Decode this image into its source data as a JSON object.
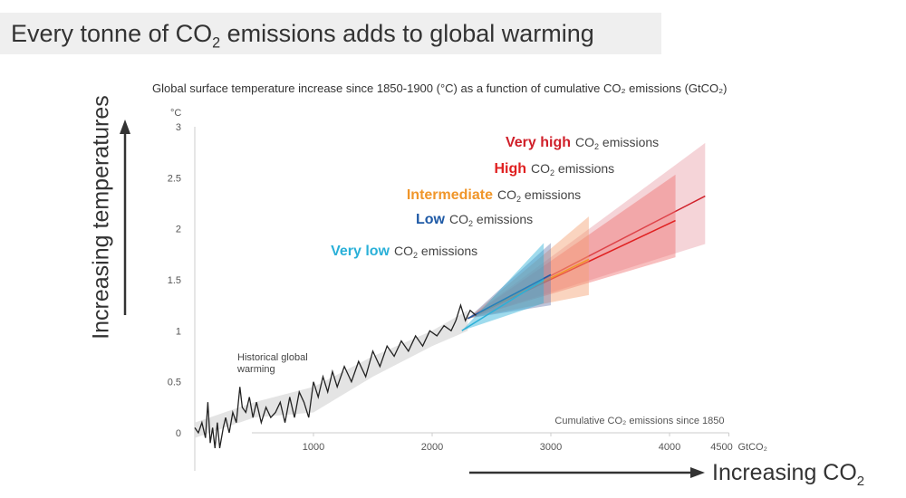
{
  "banner": {
    "title_pre": "Every tonne of CO",
    "title_sub": "2",
    "title_post": " emissions adds to global warming"
  },
  "side_labels": {
    "y": "Increasing temperatures",
    "x_pre": "Increasing CO",
    "x_sub": "2"
  },
  "chart_data": {
    "type": "line",
    "title": "Global surface temperature increase since 1850-1900 (°C) as a function of cumulative CO₂ emissions (GtCO₂)",
    "ylabel": "°C",
    "xlabel": "Cumulative CO₂ emissions since 1850",
    "x_unit": "GtCO₂",
    "xlim": [
      0,
      4500
    ],
    "ylim": [
      0,
      3
    ],
    "xticks": [
      {
        "v": 1000,
        "l": "1000"
      },
      {
        "v": 2000,
        "l": "2000"
      },
      {
        "v": 3000,
        "l": "3000"
      },
      {
        "v": 4000,
        "l": "4000"
      },
      {
        "v": 4500,
        "l": "4500"
      }
    ],
    "yticks": [
      {
        "v": 0,
        "l": "0"
      },
      {
        "v": 0.5,
        "l": "0.5"
      },
      {
        "v": 1,
        "l": "1"
      },
      {
        "v": 1.5,
        "l": "1.5"
      },
      {
        "v": 2,
        "l": "2"
      },
      {
        "v": 2.5,
        "l": "2.5"
      },
      {
        "v": 3,
        "l": "3"
      }
    ],
    "annotation": "Historical global warming",
    "historical": {
      "x": [
        0,
        30,
        60,
        90,
        110,
        130,
        150,
        170,
        190,
        210,
        240,
        260,
        290,
        320,
        350,
        380,
        400,
        430,
        460,
        490,
        520,
        560,
        600,
        640,
        680,
        720,
        760,
        800,
        840,
        880,
        920,
        960,
        1000,
        1040,
        1080,
        1120,
        1160,
        1200,
        1260,
        1320,
        1380,
        1440,
        1500,
        1560,
        1620,
        1680,
        1740,
        1800,
        1860,
        1920,
        1980,
        2040,
        2100,
        2160,
        2200,
        2240,
        2280,
        2320,
        2370
      ],
      "y": [
        0.05,
        0.0,
        0.1,
        -0.05,
        0.3,
        -0.1,
        0.05,
        -0.15,
        0.1,
        -0.15,
        0.05,
        0.15,
        0.0,
        0.2,
        0.1,
        0.45,
        0.25,
        0.2,
        0.35,
        0.15,
        0.3,
        0.1,
        0.25,
        0.15,
        0.2,
        0.3,
        0.1,
        0.35,
        0.15,
        0.4,
        0.3,
        0.15,
        0.5,
        0.35,
        0.55,
        0.4,
        0.6,
        0.45,
        0.65,
        0.5,
        0.7,
        0.55,
        0.8,
        0.65,
        0.85,
        0.75,
        0.9,
        0.8,
        0.95,
        0.85,
        1.0,
        0.95,
        1.05,
        1.0,
        1.1,
        1.25,
        1.1,
        1.2,
        1.15
      ]
    },
    "historical_range": {
      "x": [
        0,
        500,
        1000,
        1500,
        2000,
        2300
      ],
      "lower": [
        -0.05,
        0.15,
        0.2,
        0.55,
        0.85,
        1.0
      ],
      "upper": [
        0.1,
        0.3,
        0.45,
        0.75,
        1.0,
        1.2
      ]
    },
    "series": [
      {
        "name": "Very high",
        "suffix": "emissions",
        "color": "#d0202a",
        "fill": "#e8a0a8",
        "start": [
          2300,
          1.12
        ],
        "end": 4300,
        "central": 2.32,
        "lower": 1.85,
        "upper": 2.84
      },
      {
        "name": "High",
        "suffix": "emissions",
        "color": "#e02020",
        "fill": "#f07070",
        "start": [
          2300,
          1.12
        ],
        "end": 4050,
        "central": 2.08,
        "lower": 1.72,
        "upper": 2.53
      },
      {
        "name": "Intermediate",
        "suffix": "emissions",
        "color": "#f0962a",
        "fill": "#f5a070",
        "start": [
          2300,
          1.12
        ],
        "end": 3320,
        "central": 1.7,
        "lower": 1.35,
        "upper": 2.12
      },
      {
        "name": "Low",
        "suffix": "emissions",
        "color": "#1f5aa6",
        "fill": "#6f7fb0",
        "start": [
          2300,
          1.12
        ],
        "end": 3000,
        "central": 1.55,
        "lower": 1.25,
        "upper": 1.86
      },
      {
        "name": "Very low",
        "suffix": "emissions",
        "color": "#2ab0d8",
        "fill": "#2ab0d8",
        "start": [
          2250,
          1.0
        ],
        "end": 2940,
        "central": 1.5,
        "lower": 1.27,
        "upper": 1.86
      }
    ]
  }
}
